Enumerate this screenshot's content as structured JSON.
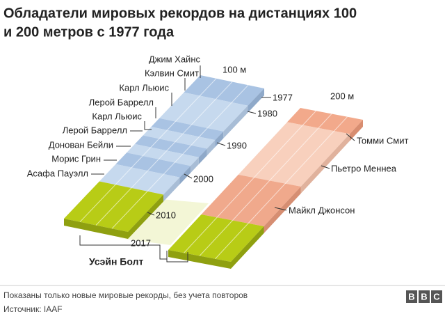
{
  "title": [
    "Обладатели мировых рекордов на дистанциях 100",
    "и 200 метров с 1977 года"
  ],
  "tracks": [
    {
      "label": "100 м",
      "holders": [
        "Джим Хайнс",
        "Кэлвин Смит",
        "Карл Льюис",
        "Лерой Баррелл",
        "Карл Льюис",
        "Лерой Баррелл",
        "Донован Бейли",
        "Морис Грин",
        "Асафа Пауэлл"
      ]
    },
    {
      "label": "200 м",
      "holders": [
        "Томми Смит",
        "Пьетро Меннеа",
        "Майкл Джонсон"
      ]
    }
  ],
  "years": [
    "1977",
    "1980",
    "1990",
    "2000",
    "2010",
    "2017"
  ],
  "current_holder": "Усэйн Болт",
  "footer": {
    "note": "Показаны только новые мировые рекорды, без учета повторов",
    "source": "Источник: IAAF",
    "logo": [
      "B",
      "B",
      "C"
    ]
  }
}
